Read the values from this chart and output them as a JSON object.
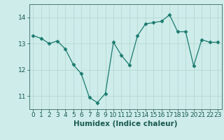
{
  "x": [
    0,
    1,
    2,
    3,
    4,
    5,
    6,
    7,
    8,
    9,
    10,
    11,
    12,
    13,
    14,
    15,
    16,
    17,
    18,
    19,
    20,
    21,
    22,
    23
  ],
  "y": [
    13.3,
    13.2,
    13.0,
    13.1,
    12.8,
    12.2,
    11.85,
    10.95,
    10.75,
    11.1,
    13.05,
    12.55,
    12.18,
    13.3,
    13.75,
    13.8,
    13.85,
    14.1,
    13.45,
    13.45,
    12.15,
    13.15,
    13.05,
    13.05
  ],
  "line_color": "#1a7a6e",
  "marker": "D",
  "marker_size": 2.5,
  "bg_color": "#cdecea",
  "grid_color": "#b8d8d4",
  "axis_color": "#4a7a70",
  "xlabel": "Humidex (Indice chaleur)",
  "ylim": [
    10.5,
    14.5
  ],
  "xlim": [
    -0.5,
    23.5
  ],
  "yticks": [
    11,
    12,
    13,
    14
  ],
  "xticks": [
    0,
    1,
    2,
    3,
    4,
    5,
    6,
    7,
    8,
    9,
    10,
    11,
    12,
    13,
    14,
    15,
    16,
    17,
    18,
    19,
    20,
    21,
    22,
    23
  ],
  "font_color": "#1a5a50",
  "xlabel_fontsize": 7.5,
  "tick_fontsize": 6.5
}
